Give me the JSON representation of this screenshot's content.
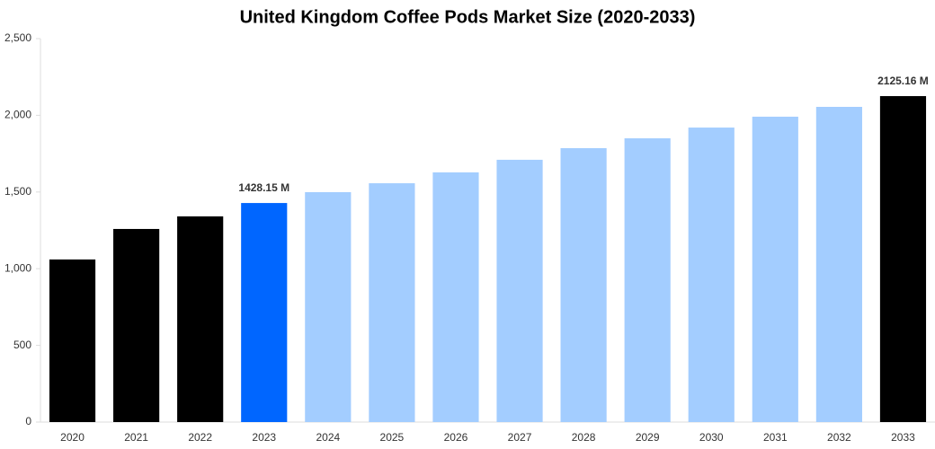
{
  "chart_data": {
    "type": "bar",
    "title": "United Kingdom Coffee Pods Market Size (2020-2033)",
    "categories": [
      "2020",
      "2021",
      "2022",
      "2023",
      "2024",
      "2025",
      "2026",
      "2027",
      "2028",
      "2029",
      "2030",
      "2031",
      "2032",
      "2033"
    ],
    "values": [
      1060,
      1259,
      1341,
      1428.15,
      1499,
      1557,
      1628,
      1710,
      1786,
      1850,
      1920,
      1991,
      2055,
      2125.16
    ],
    "value_labels": [
      null,
      null,
      null,
      "1428.15 M",
      null,
      null,
      null,
      null,
      null,
      null,
      null,
      null,
      null,
      "2125.16 M"
    ],
    "colors": [
      "#000000",
      "#000000",
      "#000000",
      "#0066ff",
      "#a3cdff",
      "#a3cdff",
      "#a3cdff",
      "#a3cdff",
      "#a3cdff",
      "#a3cdff",
      "#a3cdff",
      "#a3cdff",
      "#a3cdff",
      "#000000"
    ],
    "ylim": [
      0,
      2500
    ],
    "yticks": [
      0,
      500,
      {
        "value": 1000,
        "label": "1,000"
      },
      {
        "value": 1500,
        "label": "1,500"
      },
      {
        "value": 2000,
        "label": "2,000"
      },
      {
        "value": 2500,
        "label": "2,500"
      }
    ],
    "grid": false
  }
}
